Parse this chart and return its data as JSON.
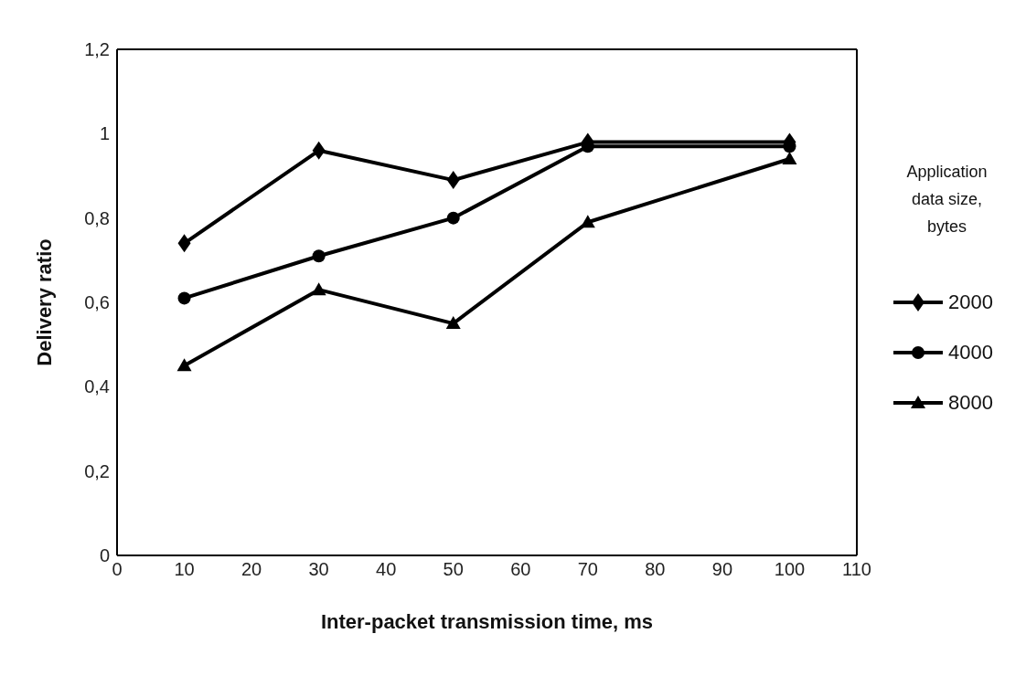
{
  "chart_data": {
    "type": "line",
    "xlabel": "Inter-packet transmission time, ms",
    "ylabel": "Delivery ratio",
    "legend_title": "Application data size, bytes",
    "legend": "right",
    "line_style": "solid",
    "x": [
      10,
      30,
      50,
      70,
      100
    ],
    "xlim": [
      0,
      110
    ],
    "xticks": [
      0,
      10,
      20,
      30,
      40,
      50,
      60,
      70,
      80,
      90,
      100,
      110
    ],
    "ylim": [
      0,
      1.2
    ],
    "yticks": [
      0,
      {
        "value": 0.2,
        "label": "0,2"
      },
      {
        "value": 0.4,
        "label": "0,4"
      },
      {
        "value": 0.6,
        "label": "0,6"
      },
      {
        "value": 0.8,
        "label": "0,8"
      },
      1,
      {
        "value": 1.2,
        "label": "1,2"
      }
    ],
    "series": [
      {
        "name": "2000",
        "color": "#000000",
        "marker": "diamond",
        "values": [
          0.74,
          0.96,
          0.89,
          0.98,
          0.98
        ]
      },
      {
        "name": "4000",
        "color": "#000000",
        "marker": "circle",
        "values": [
          0.61,
          0.71,
          0.8,
          0.97,
          0.97
        ]
      },
      {
        "name": "8000",
        "color": "#000000",
        "marker": "triangle",
        "values": [
          0.45,
          0.63,
          0.55,
          0.79,
          0.94
        ]
      }
    ]
  }
}
